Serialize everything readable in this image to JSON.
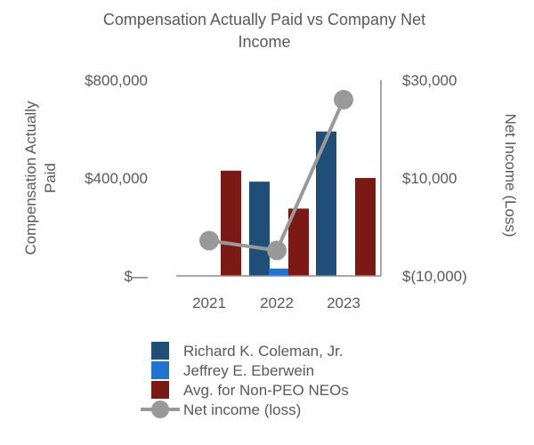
{
  "chart_data": {
    "type": "bar",
    "title": [
      "Compensation Actually Paid vs Company Net",
      "Income"
    ],
    "xlabel": "",
    "ylabel": [
      "Compensation Actually",
      "Paid"
    ],
    "y2label": "Net Income (Loss)",
    "categories": [
      "2021",
      "2022",
      "2023"
    ],
    "ylim": [
      0,
      800000
    ],
    "y_ticks": [
      {
        "value": 0,
        "label": "$—"
      },
      {
        "value": 400000,
        "label": "$400,000"
      },
      {
        "value": 800000,
        "label": "$800,000"
      }
    ],
    "y2lim": [
      -10000,
      30000
    ],
    "y2_ticks": [
      {
        "value": -10000,
        "label": "$(10,000)"
      },
      {
        "value": 10000,
        "label": "$10,000"
      },
      {
        "value": 30000,
        "label": "$30,000"
      }
    ],
    "series": [
      {
        "name": "Richard K. Coleman, Jr.",
        "type": "bar",
        "axis": "left",
        "color": "#1f4e79",
        "values": [
          0,
          385000,
          590000
        ]
      },
      {
        "name": "Jeffrey E. Eberwein",
        "type": "bar",
        "axis": "left",
        "color": "#1e74d0",
        "values": [
          0,
          30000,
          0
        ]
      },
      {
        "name": "Avg. for Non-PEO NEOs",
        "type": "bar",
        "axis": "left",
        "color": "#7b1a14",
        "values": [
          430000,
          275000,
          400000
        ]
      },
      {
        "name": "Net income (loss)",
        "type": "line",
        "axis": "right",
        "color": "#999999",
        "values": [
          -2800,
          -4800,
          26000
        ]
      }
    ],
    "grid": false,
    "legend_position": "bottom"
  }
}
